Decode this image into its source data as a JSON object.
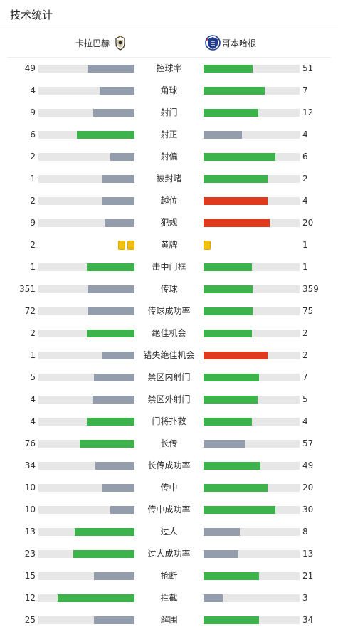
{
  "header": {
    "title": "技术统计"
  },
  "teams": {
    "home": {
      "name": "卡拉巴赫"
    },
    "away": {
      "name": "哥本哈根"
    }
  },
  "colors": {
    "win": "#3cb44b",
    "lose": "#949dab",
    "red": "#e03a1e",
    "track": "#e7e7e7",
    "yellow_card": "#f2c10f"
  },
  "stats": [
    {
      "label": "控球率",
      "home": "49",
      "away": "51",
      "home_fill": 0.49,
      "away_fill": 0.51,
      "home_color": "lose",
      "away_color": "win"
    },
    {
      "label": "角球",
      "home": "4",
      "away": "7",
      "home_fill": 0.36,
      "away_fill": 0.64,
      "home_color": "lose",
      "away_color": "win"
    },
    {
      "label": "射门",
      "home": "9",
      "away": "12",
      "home_fill": 0.43,
      "away_fill": 0.57,
      "home_color": "lose",
      "away_color": "win"
    },
    {
      "label": "射正",
      "home": "6",
      "away": "4",
      "home_fill": 0.6,
      "away_fill": 0.4,
      "home_color": "win",
      "away_color": "lose"
    },
    {
      "label": "射偏",
      "home": "2",
      "away": "6",
      "home_fill": 0.25,
      "away_fill": 0.75,
      "home_color": "lose",
      "away_color": "win"
    },
    {
      "label": "被封堵",
      "home": "1",
      "away": "2",
      "home_fill": 0.33,
      "away_fill": 0.67,
      "home_color": "lose",
      "away_color": "win"
    },
    {
      "label": "越位",
      "home": "2",
      "away": "4",
      "home_fill": 0.33,
      "away_fill": 0.67,
      "home_color": "lose",
      "away_color": "red"
    },
    {
      "label": "犯规",
      "home": "9",
      "away": "20",
      "home_fill": 0.31,
      "away_fill": 0.69,
      "home_color": "lose",
      "away_color": "red"
    },
    {
      "label": "黄牌",
      "home": "2",
      "away": "1",
      "cards": true
    },
    {
      "label": "击中门框",
      "home": "1",
      "away": "1",
      "home_fill": 0.5,
      "away_fill": 0.5,
      "home_color": "win",
      "away_color": "win"
    },
    {
      "label": "传球",
      "home": "351",
      "away": "359",
      "home_fill": 0.49,
      "away_fill": 0.51,
      "home_color": "lose",
      "away_color": "win"
    },
    {
      "label": "传球成功率",
      "home": "72",
      "away": "75",
      "home_fill": 0.49,
      "away_fill": 0.51,
      "home_color": "lose",
      "away_color": "win"
    },
    {
      "label": "绝佳机会",
      "home": "2",
      "away": "2",
      "home_fill": 0.5,
      "away_fill": 0.5,
      "home_color": "win",
      "away_color": "win"
    },
    {
      "label": "错失绝佳机会",
      "home": "1",
      "away": "2",
      "home_fill": 0.33,
      "away_fill": 0.67,
      "home_color": "lose",
      "away_color": "red"
    },
    {
      "label": "禁区内射门",
      "home": "5",
      "away": "7",
      "home_fill": 0.42,
      "away_fill": 0.58,
      "home_color": "lose",
      "away_color": "win"
    },
    {
      "label": "禁区外射门",
      "home": "4",
      "away": "5",
      "home_fill": 0.44,
      "away_fill": 0.56,
      "home_color": "lose",
      "away_color": "win"
    },
    {
      "label": "门将扑救",
      "home": "4",
      "away": "4",
      "home_fill": 0.5,
      "away_fill": 0.5,
      "home_color": "win",
      "away_color": "win"
    },
    {
      "label": "长传",
      "home": "76",
      "away": "57",
      "home_fill": 0.57,
      "away_fill": 0.43,
      "home_color": "win",
      "away_color": "lose"
    },
    {
      "label": "长传成功率",
      "home": "34",
      "away": "49",
      "home_fill": 0.41,
      "away_fill": 0.59,
      "home_color": "lose",
      "away_color": "win"
    },
    {
      "label": "传中",
      "home": "10",
      "away": "20",
      "home_fill": 0.33,
      "away_fill": 0.67,
      "home_color": "lose",
      "away_color": "win"
    },
    {
      "label": "传中成功率",
      "home": "10",
      "away": "30",
      "home_fill": 0.25,
      "away_fill": 0.75,
      "home_color": "lose",
      "away_color": "win"
    },
    {
      "label": "过人",
      "home": "13",
      "away": "8",
      "home_fill": 0.62,
      "away_fill": 0.38,
      "home_color": "win",
      "away_color": "lose"
    },
    {
      "label": "过人成功率",
      "home": "23",
      "away": "13",
      "home_fill": 0.64,
      "away_fill": 0.36,
      "home_color": "win",
      "away_color": "lose"
    },
    {
      "label": "抢断",
      "home": "15",
      "away": "21",
      "home_fill": 0.42,
      "away_fill": 0.58,
      "home_color": "lose",
      "away_color": "win"
    },
    {
      "label": "拦截",
      "home": "12",
      "away": "3",
      "home_fill": 0.8,
      "away_fill": 0.2,
      "home_color": "win",
      "away_color": "lose"
    },
    {
      "label": "解围",
      "home": "25",
      "away": "34",
      "home_fill": 0.42,
      "away_fill": 0.58,
      "home_color": "lose",
      "away_color": "win"
    }
  ]
}
